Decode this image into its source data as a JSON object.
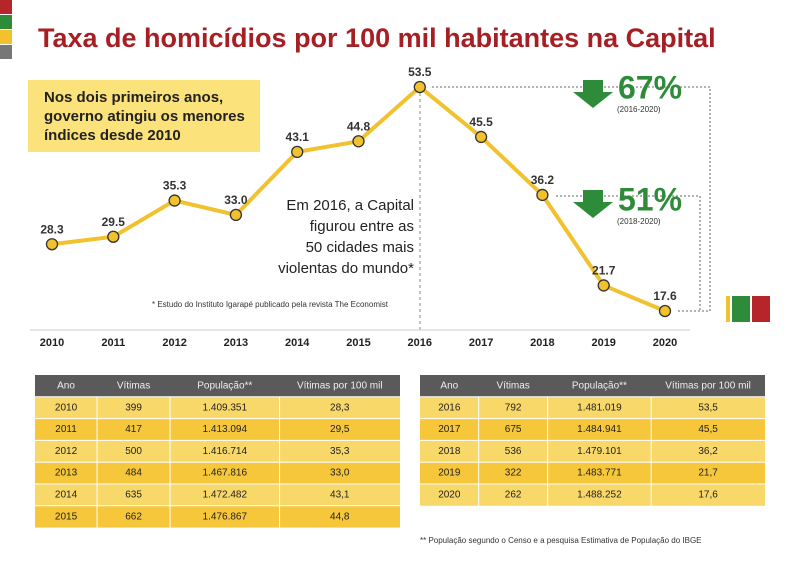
{
  "chart_data": {
    "type": "line",
    "title": "Taxa de homicídios por 100 mil habitantes na Capital",
    "categories": [
      "2010",
      "2011",
      "2012",
      "2013",
      "2014",
      "2015",
      "2016",
      "2017",
      "2018",
      "2019",
      "2020"
    ],
    "values": [
      28.3,
      29.5,
      35.3,
      33.0,
      43.1,
      44.8,
      53.5,
      45.5,
      36.2,
      21.7,
      17.6
    ],
    "value_labels": [
      "28.3",
      "29.5",
      "35.3",
      "33.0",
      "43.1",
      "44.8",
      "53.5",
      "45.5",
      "36.2",
      "21.7",
      "17.6"
    ],
    "color": "#f2c12e",
    "annotations": {
      "note": [
        "Nos dois primeiros anos,",
        "governo atingiu os menores",
        "índices desde 2010"
      ],
      "highlight": [
        "Em 2016, a Capital",
        "figurou entre as",
        "50 cidades mais",
        "violentas do mundo*"
      ],
      "footnote": "* Estudo do Instituto Igarapé publicado pela revista The Economist",
      "drop1": "67%",
      "drop1_period": "(2016-2020)",
      "drop2": "51%",
      "drop2_period": "(2018-2020)"
    }
  },
  "tables": [
    {
      "header": [
        "Ano",
        "Vítimas",
        "População**",
        "Vítimas por 100 mil"
      ],
      "rows": [
        [
          "2010",
          "399",
          "1.409.351",
          "28,3"
        ],
        [
          "2011",
          "417",
          "1.413.094",
          "29,5"
        ],
        [
          "2012",
          "500",
          "1.416.714",
          "35,3"
        ],
        [
          "2013",
          "484",
          "1.467.816",
          "33,0"
        ],
        [
          "2014",
          "635",
          "1.472.482",
          "43,1"
        ],
        [
          "2015",
          "662",
          "1.476.867",
          "44,8"
        ]
      ]
    },
    {
      "header": [
        "Ano",
        "Vítimas",
        "População**",
        "Vítimas por 100 mil"
      ],
      "rows": [
        [
          "2016",
          "792",
          "1.481.019",
          "53,5"
        ],
        [
          "2017",
          "675",
          "1.484.941",
          "45,5"
        ],
        [
          "2018",
          "536",
          "1.479.101",
          "36,2"
        ],
        [
          "2019",
          "322",
          "1.483.771",
          "21,7"
        ],
        [
          "2020",
          "262",
          "1.488.252",
          "17,6"
        ]
      ]
    }
  ],
  "table_footnote": "** População segundo o Censo e a pesquisa Estimativa de População do IBGE"
}
